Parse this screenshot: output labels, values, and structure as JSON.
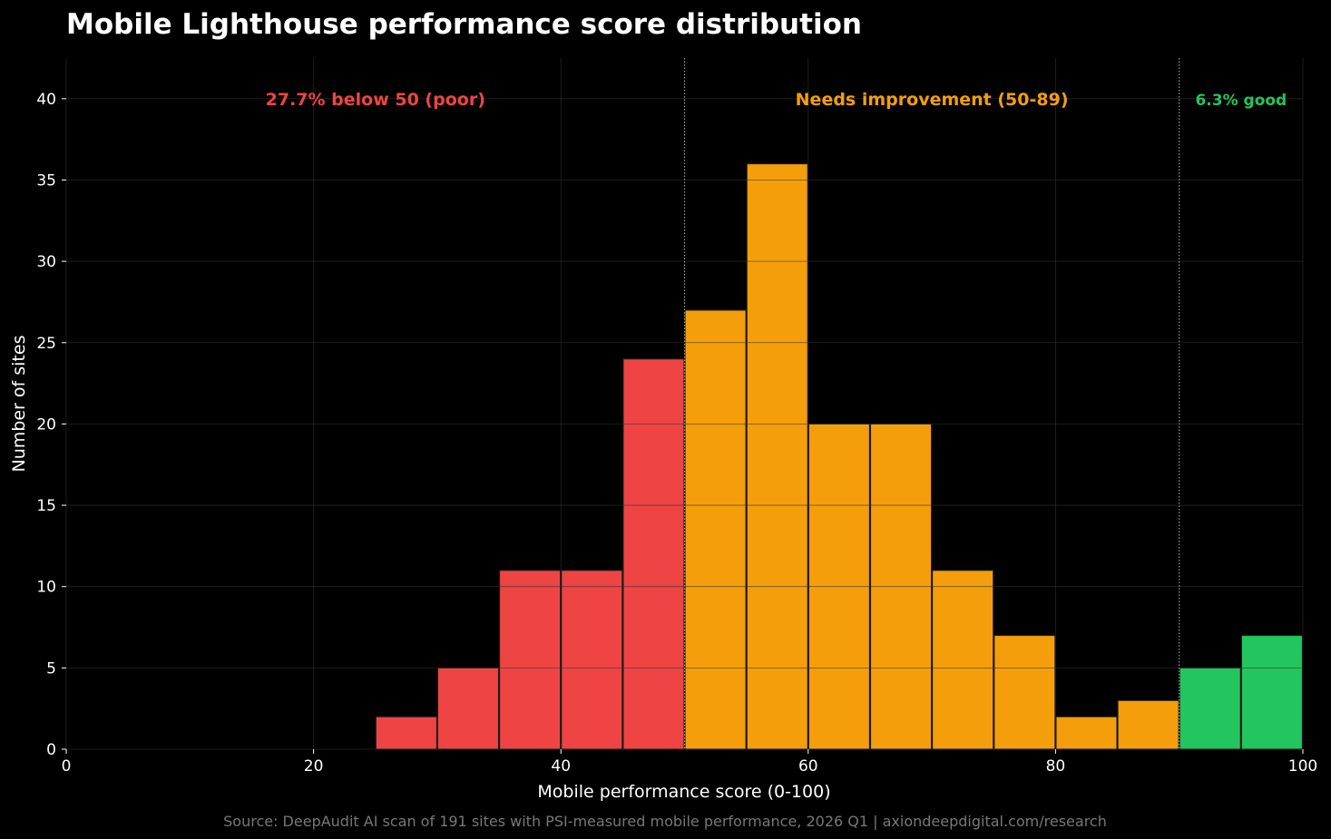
{
  "chart_data": {
    "type": "bar",
    "title": "Mobile Lighthouse performance score distribution",
    "xlabel": "Mobile performance score (0-100)",
    "ylabel": "Number of sites",
    "xlim": [
      0,
      100
    ],
    "ylim": [
      0,
      42.5
    ],
    "xticks": [
      0,
      20,
      40,
      60,
      80,
      100
    ],
    "yticks": [
      0,
      5,
      10,
      15,
      20,
      25,
      30,
      35,
      40
    ],
    "grid": true,
    "bin_width": 5,
    "bins": [
      {
        "start": 25,
        "end": 30,
        "count": 2,
        "category": "poor"
      },
      {
        "start": 30,
        "end": 35,
        "count": 5,
        "category": "poor"
      },
      {
        "start": 35,
        "end": 40,
        "count": 11,
        "category": "poor"
      },
      {
        "start": 40,
        "end": 45,
        "count": 11,
        "category": "poor"
      },
      {
        "start": 45,
        "end": 50,
        "count": 24,
        "category": "poor"
      },
      {
        "start": 50,
        "end": 55,
        "count": 27,
        "category": "needs"
      },
      {
        "start": 55,
        "end": 60,
        "count": 36,
        "category": "needs"
      },
      {
        "start": 60,
        "end": 65,
        "count": 20,
        "category": "needs"
      },
      {
        "start": 65,
        "end": 70,
        "count": 20,
        "category": "needs"
      },
      {
        "start": 70,
        "end": 75,
        "count": 11,
        "category": "needs"
      },
      {
        "start": 75,
        "end": 80,
        "count": 7,
        "category": "needs"
      },
      {
        "start": 80,
        "end": 85,
        "count": 2,
        "category": "needs"
      },
      {
        "start": 85,
        "end": 90,
        "count": 3,
        "category": "needs"
      },
      {
        "start": 90,
        "end": 95,
        "count": 5,
        "category": "good"
      },
      {
        "start": 95,
        "end": 100,
        "count": 7,
        "category": "good"
      }
    ],
    "colors": {
      "poor": "#ef4444",
      "needs": "#f59e0b",
      "good": "#22c55e",
      "background": "#000000",
      "grid": "#333333"
    },
    "threshold_lines": [
      50,
      90
    ],
    "annotations": [
      {
        "text": "27.7% below 50 (poor)",
        "x": 25,
        "y": 40,
        "category": "poor"
      },
      {
        "text": "Needs improvement (50-89)",
        "x": 70,
        "y": 40,
        "category": "needs"
      },
      {
        "text": "6.3% good",
        "x": 95,
        "y": 40,
        "category": "good"
      }
    ],
    "source": "Source: DeepAudit AI scan of 191 sites with PSI-measured mobile performance, 2026 Q1 | axiondeepdigital.com/research"
  }
}
